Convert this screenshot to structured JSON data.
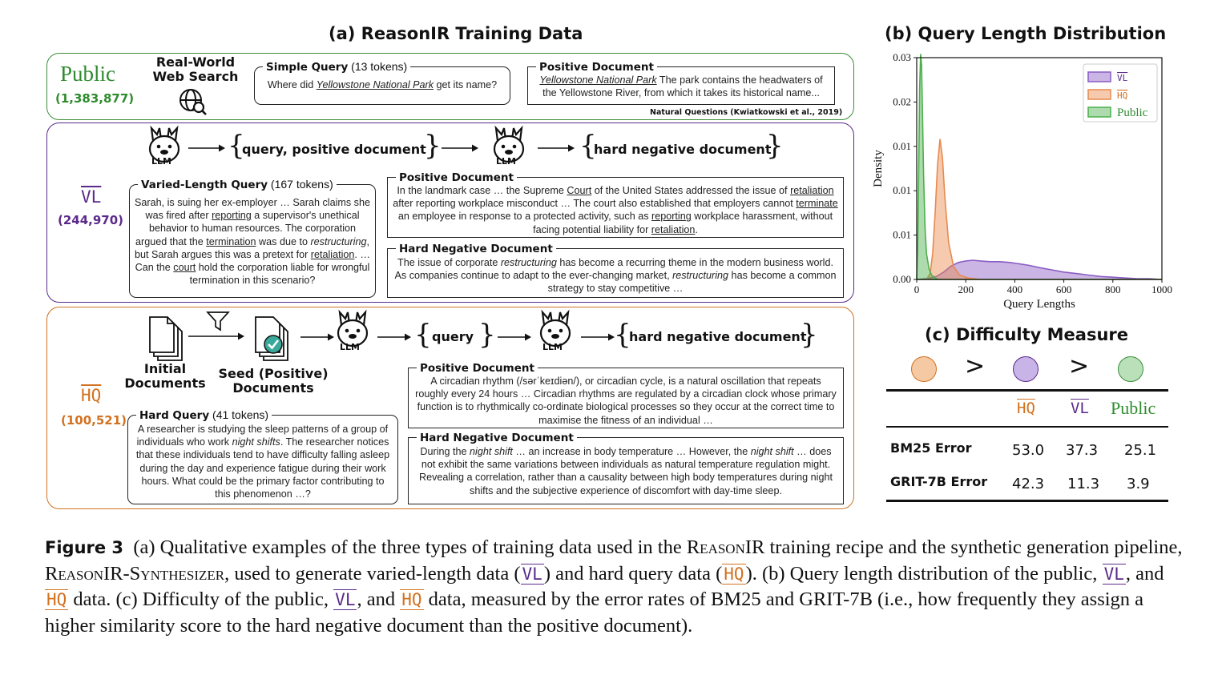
{
  "panel_a": {
    "title": "(a) ReasonIR Training Data",
    "public": {
      "label": "Public",
      "count": "(1,383,877)",
      "source_title": "Real-World Web Search",
      "query_box": {
        "title": "Simple Query",
        "tokens": "(13 tokens)",
        "text_before": "Where did ",
        "text_link": "Yellowstone National Park",
        "text_after": " get its name?"
      },
      "doc_box": {
        "title": "Positive Document",
        "text_link": "Yellowstone National Park",
        "text_after": " The park contains the headwaters of the Yellowstone River, from which it takes its historical name..."
      },
      "citation": "Natural Questions (Kwiatkowski et al., 2019)"
    },
    "vl": {
      "label": "VL",
      "count": "(244,970)",
      "llm_label": "LLM",
      "pipe_query_pos": "query,  positive document",
      "pipe_hard_neg": "hard negative document",
      "query_box": {
        "title": "Varied-Length Query",
        "tokens": "(167 tokens)",
        "parts": [
          "Sarah, is suing her ex-employer … Sarah claims she was fired after ",
          "reporting",
          " a supervisor's unethical behavior to human resources. The corporation argued that the ",
          "termination",
          " was due to ",
          "restructuring",
          ", but Sarah argues this was a pretext for ",
          "retaliation",
          ". … Can the ",
          "court",
          " hold the corporation liable for wrongful termination in this scenario?"
        ]
      },
      "pos_box": {
        "title": "Positive Document",
        "parts": [
          "In the landmark case … the Supreme ",
          "Court",
          " of the United States addressed the issue of ",
          "retaliation",
          " after reporting workplace misconduct … The court also established that employers cannot ",
          "terminate",
          " an employee in response to a protected activity, such as ",
          "reporting",
          " workplace harassment, without facing potential liability for ",
          "retaliation",
          "."
        ]
      },
      "neg_box": {
        "title": "Hard Negative Document",
        "parts": [
          "The issue of corporate ",
          "restructuring",
          " has become a recurring theme in the modern business world. As companies continue to adapt to the ever-changing market, ",
          "restructuring",
          " has become a common strategy to stay competitive …"
        ]
      }
    },
    "hq": {
      "label": "HQ",
      "count": "(100,521)",
      "initial_docs": "Initial Documents",
      "seed_docs": "Seed (Positive) Documents",
      "llm_label": "LLM",
      "pipe_query": "query",
      "pipe_hard_neg": "hard negative document",
      "query_box": {
        "title": "Hard Query",
        "tokens": "(41 tokens)",
        "parts": [
          "A researcher is studying the sleep patterns of a group of individuals who work ",
          "night shifts",
          ". The researcher notices that these individuals tend to have difficulty falling asleep during the day and experience fatigue during their work hours. What could be the primary factor contributing to this phenomenon …?"
        ]
      },
      "pos_box": {
        "title": "Positive Document",
        "text": "A circadian rhythm (/sərˈkeɪdiən/), or circadian cycle, is a natural oscillation that repeats roughly every 24 hours … Circadian rhythms are regulated by a circadian clock whose primary function is to rhythmically co-ordinate biological processes so they occur at the correct time to maximise the fitness of an individual …"
      },
      "neg_box": {
        "title": "Hard Negative Document",
        "parts": [
          "During the ",
          "night shift",
          " … an increase in body temperature … However, the ",
          "night shift",
          " … does not exhibit the same variations between individuals as natural temperature regulation might. Revealing a correlation, rather than a causality between high body temperatures during night shifts and the subjective experience of discomfort with day-time sleep."
        ]
      }
    }
  },
  "panel_b": {
    "title": "(b) Query Length Distribution",
    "chart_data": {
      "type": "area",
      "xlabel": "Query Lengths",
      "ylabel": "Density",
      "xlim": [
        0,
        1000
      ],
      "ylim": [
        0,
        0.03
      ],
      "x_ticks": [
        "0",
        "200",
        "400",
        "600",
        "800",
        "1000"
      ],
      "y_ticks": [
        "0.00",
        "0.01",
        "0.01",
        "0.01",
        "0.02",
        "0.03"
      ],
      "legend_position": "top-right",
      "series": [
        {
          "name": "VL",
          "color": "#8a5cc4",
          "x": [
            0,
            40,
            80,
            110,
            140,
            170,
            200,
            230,
            260,
            300,
            340,
            380,
            420,
            460,
            500,
            550,
            600,
            650,
            700,
            750,
            800,
            850,
            900,
            950,
            1000
          ],
          "y": [
            0.0,
            0.0001,
            0.0004,
            0.001,
            0.0018,
            0.0023,
            0.0025,
            0.0026,
            0.0025,
            0.0024,
            0.0024,
            0.0023,
            0.0021,
            0.0019,
            0.0016,
            0.0013,
            0.001,
            0.0008,
            0.0006,
            0.0004,
            0.0003,
            0.0002,
            0.0001,
            0.0001,
            0.0
          ]
        },
        {
          "name": "HQ",
          "color": "#e88a4e",
          "x": [
            0,
            40,
            55,
            65,
            75,
            85,
            95,
            105,
            115,
            130,
            150,
            175,
            210,
            260,
            1000
          ],
          "y": [
            0.0,
            0.0,
            0.0008,
            0.0035,
            0.009,
            0.0155,
            0.019,
            0.0165,
            0.011,
            0.005,
            0.0018,
            0.0006,
            0.0002,
            0.0,
            0.0
          ]
        },
        {
          "name": "Public",
          "color": "#4cb04c",
          "x": [
            0,
            4,
            8,
            12,
            16,
            20,
            24,
            28,
            34,
            40,
            50,
            60,
            75,
            90,
            120,
            1000
          ],
          "y": [
            0.0,
            0.004,
            0.014,
            0.026,
            0.0305,
            0.029,
            0.022,
            0.014,
            0.007,
            0.0035,
            0.0015,
            0.0006,
            0.0002,
            0.0,
            0.0,
            0.0
          ]
        }
      ]
    }
  },
  "panel_c": {
    "title": "(c) Difficulty Measure",
    "order_symbol": ">",
    "col_hq": "HQ",
    "col_vl": "VL",
    "col_public": "Public",
    "rows": [
      {
        "label": "BM25 Error",
        "hq": "53.0",
        "vl": "37.3",
        "public": "25.1"
      },
      {
        "label": "GRIT-7B Error",
        "hq": "42.3",
        "vl": "11.3",
        "public": "3.9"
      }
    ]
  },
  "caption": {
    "fig_label": "Figure 3",
    "t1": "(a) Qualitative examples of the three types of training data used in the ",
    "reasonir": "ReasonIR",
    "t2": " training recipe and the synthetic generation pipeline, ",
    "synth": "ReasonIR-Synthesizer",
    "t3": ", used to generate varied-length data (",
    "vl": "VL",
    "t4": ") and hard query data (",
    "hq": "HQ",
    "t5": ").  (b) Query length distribution of the public, ",
    "t6": ", and ",
    "t7": " data.  (c) Difficulty of the public, ",
    "t8": ", and ",
    "t9": " data, measured by the error rates of BM25 and GRIT-7B (i.e., how frequently they assign a higher similarity score to the hard negative document than the positive document)."
  }
}
